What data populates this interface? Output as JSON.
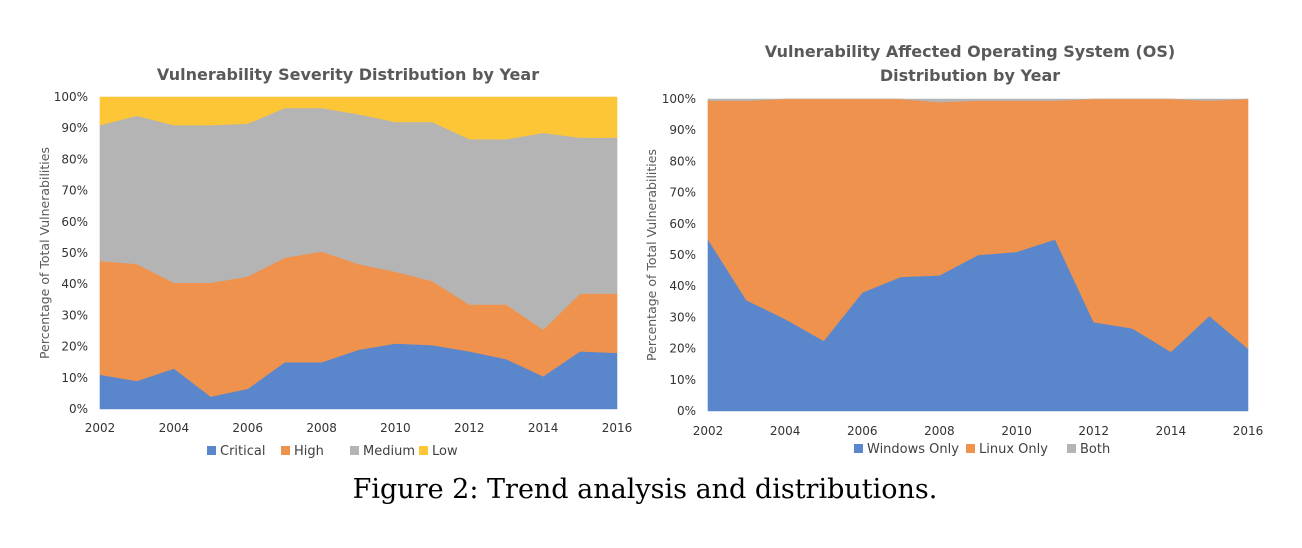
{
  "caption": "Figure 2: Trend analysis and distributions.",
  "chart_data": [
    {
      "type": "area",
      "stacked": true,
      "title": "Vulnerability Severity Distribution by Year",
      "xlabel": "",
      "ylabel": "Percentage of Total Vulnerabilities",
      "ylim": [
        0,
        100
      ],
      "y_ticks": [
        "0%",
        "10%",
        "20%",
        "30%",
        "40%",
        "50%",
        "60%",
        "70%",
        "80%",
        "90%",
        "100%"
      ],
      "x_ticks": [
        "2002",
        "2004",
        "2006",
        "2008",
        "2010",
        "2012",
        "2014",
        "2016"
      ],
      "x": [
        2002,
        2003,
        2004,
        2005,
        2006,
        2007,
        2008,
        2009,
        2010,
        2011,
        2012,
        2013,
        2014,
        2015,
        2016
      ],
      "legend_position": "bottom",
      "series": [
        {
          "name": "Critical",
          "color": "#5a87cc",
          "values": [
            11,
            9,
            13,
            4,
            6.5,
            15,
            15,
            19,
            21,
            20.5,
            18.5,
            16,
            10.5,
            18.5,
            18
          ]
        },
        {
          "name": "High",
          "color": "#ee924d",
          "values": [
            36.5,
            37.5,
            27.5,
            36.5,
            36,
            33.5,
            35.5,
            27.5,
            23,
            20.5,
            15,
            17.5,
            15,
            18.5,
            19
          ]
        },
        {
          "name": "Medium",
          "color": "#b4b4b4",
          "values": [
            43.5,
            47.5,
            50.5,
            50.5,
            49,
            48,
            46,
            48,
            48,
            51,
            53,
            53,
            63,
            50,
            50
          ]
        },
        {
          "name": "Low",
          "color": "#fdc636",
          "values": [
            9,
            6,
            9,
            9,
            8.5,
            3.5,
            3.5,
            5.5,
            8,
            8,
            13.5,
            13.5,
            11.5,
            13,
            13
          ]
        }
      ]
    },
    {
      "type": "area",
      "stacked": true,
      "title": "Vulnerability Affected Operating System (OS) Distribution by Year",
      "title_lines": [
        "Vulnerability Affected Operating System (OS)",
        "Distribution by Year"
      ],
      "xlabel": "",
      "ylabel": "Percentage of Total Vulnerabilities",
      "ylim": [
        0,
        100
      ],
      "y_ticks": [
        "0%",
        "10%",
        "20%",
        "30%",
        "40%",
        "50%",
        "60%",
        "70%",
        "80%",
        "90%",
        "100%"
      ],
      "x_ticks": [
        "2002",
        "2004",
        "2006",
        "2008",
        "2010",
        "2012",
        "2014",
        "2016"
      ],
      "x": [
        2002,
        2003,
        2004,
        2005,
        2006,
        2007,
        2008,
        2009,
        2010,
        2011,
        2012,
        2013,
        2014,
        2015,
        2016
      ],
      "legend_position": "bottom",
      "series": [
        {
          "name": "Windows Only",
          "color": "#5a87cc",
          "values": [
            55,
            35.5,
            29.5,
            22.5,
            38,
            43,
            43.5,
            50,
            51,
            55,
            28.5,
            26.5,
            19,
            30.5,
            20
          ]
        },
        {
          "name": "Linux Only",
          "color": "#ee924d",
          "values": [
            44.5,
            64,
            70.5,
            77.5,
            62,
            57,
            55.5,
            49.5,
            48.5,
            44.5,
            71.5,
            73.5,
            81,
            69,
            80
          ]
        },
        {
          "name": "Both",
          "color": "#b4b4b4",
          "values": [
            0.5,
            0.5,
            0,
            0,
            0,
            0,
            1,
            0.5,
            0.5,
            0.5,
            0,
            0,
            0,
            0.5,
            0
          ]
        }
      ]
    }
  ]
}
